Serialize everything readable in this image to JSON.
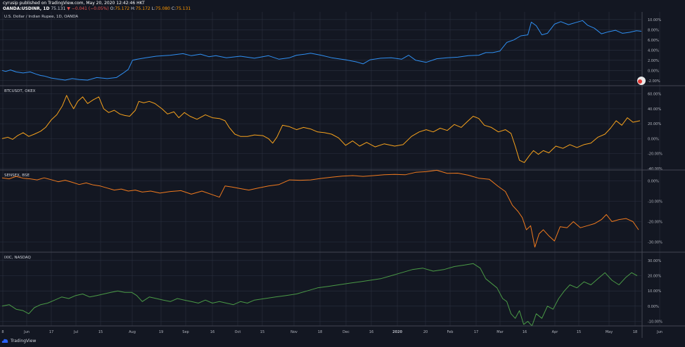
{
  "header": {
    "published": "cyrusip published on TradingView.com, May 20, 2020 12:42:46 HKT",
    "symbol": "OANDA:USDINR, 1D",
    "last": "75.131",
    "change": "▼ −0.041 (−0.05%)",
    "o_label": "O:",
    "o_value": "75.172",
    "h_label": "H:",
    "h_value": "75.172",
    "l_label": "L:",
    "l_value": "75.080",
    "c_label": "C:",
    "c_value": "75.131"
  },
  "footer": {
    "brand": "TradingView"
  },
  "colors": {
    "background": "#131722",
    "grid": "#2a3140",
    "pane_border": "#434651",
    "usdinr": "#2f8ff2",
    "btcusdt": "#f7a21c",
    "sensex": "#f07a1e",
    "ixic": "#4a9a46"
  },
  "chart_data": [
    {
      "type": "line",
      "title": "U.S. Dollar / Indian Rupee, 1D, OANDA",
      "color": "#2f8ff2",
      "y_unit": "%",
      "ylim": [
        -3.0,
        11.5
      ],
      "y_ticks": [
        "10.00%",
        "8.00%",
        "6.00%",
        "4.00%",
        "2.00%",
        "0.00%",
        "-2.00%"
      ],
      "y_tick_values": [
        10,
        8,
        6,
        4,
        2,
        0,
        -2
      ],
      "x": [
        0,
        5,
        12,
        20,
        30,
        40,
        48,
        55,
        60,
        70,
        80,
        90,
        100,
        110,
        122,
        135,
        150,
        163,
        172,
        180,
        186,
        193,
        205,
        220,
        240,
        258,
        270,
        283,
        295,
        305,
        320,
        340,
        360,
        380,
        395,
        410,
        420,
        432,
        440,
        455,
        470,
        490,
        505,
        515,
        525,
        540,
        555,
        570,
        580,
        590,
        605,
        620,
        635,
        650,
        665,
        680,
        690,
        700,
        710,
        720,
        730,
        740,
        750,
        755,
        762,
        770,
        778,
        788,
        797,
        808,
        818,
        828,
        835,
        845,
        855,
        865,
        875,
        885,
        895,
        905,
        912
      ],
      "values": [
        0.0,
        -0.2,
        0.1,
        -0.3,
        -0.5,
        -0.3,
        -0.7,
        -1.0,
        -1.1,
        -1.5,
        -1.7,
        -1.9,
        -1.6,
        -1.8,
        -1.9,
        -1.4,
        -1.6,
        -1.4,
        -0.6,
        0.2,
        2.0,
        2.2,
        2.5,
        2.8,
        3.0,
        3.3,
        2.9,
        3.2,
        2.7,
        2.9,
        2.5,
        2.8,
        2.4,
        2.9,
        2.2,
        2.5,
        3.0,
        3.2,
        3.4,
        3.0,
        2.5,
        2.1,
        1.7,
        1.3,
        2.1,
        2.4,
        2.5,
        2.2,
        3.0,
        2.0,
        1.6,
        2.3,
        2.5,
        2.6,
        2.9,
        3.0,
        3.5,
        3.5,
        3.8,
        5.5,
        6.0,
        6.8,
        7.0,
        9.5,
        8.8,
        7.0,
        7.3,
        9.1,
        9.6,
        9.0,
        9.4,
        9.8,
        8.9,
        8.3,
        7.2,
        7.6,
        7.9,
        7.3,
        7.5,
        7.8,
        7.7
      ]
    },
    {
      "type": "line",
      "title": "BTCUSDT, OKEX",
      "color": "#f7a21c",
      "y_unit": "%",
      "ylim": [
        -42,
        70
      ],
      "y_ticks": [
        "60.00%",
        "40.00%",
        "20.00%",
        "0.00%",
        "-20.00%",
        "-40.00%"
      ],
      "y_tick_values": [
        60,
        40,
        20,
        0,
        -20,
        -40
      ],
      "x": [
        0,
        8,
        15,
        22,
        30,
        38,
        46,
        55,
        62,
        70,
        78,
        86,
        92,
        97,
        102,
        108,
        115,
        122,
        130,
        138,
        145,
        152,
        160,
        168,
        175,
        182,
        190,
        195,
        202,
        210,
        218,
        228,
        236,
        245,
        252,
        260,
        268,
        278,
        290,
        300,
        310,
        318,
        324,
        332,
        340,
        350,
        360,
        372,
        380,
        386,
        392,
        400,
        410,
        420,
        430,
        440,
        450,
        460,
        470,
        480,
        490,
        500,
        510,
        520,
        532,
        545,
        560,
        572,
        584,
        595,
        605,
        615,
        625,
        635,
        645,
        655,
        665,
        672,
        680,
        688,
        698,
        708,
        718,
        726,
        732,
        738,
        745,
        752,
        758,
        765,
        772,
        780,
        790,
        800,
        810,
        820,
        830,
        840,
        850,
        860,
        868,
        876,
        884,
        892,
        900,
        910
      ],
      "values": [
        0,
        2,
        -1,
        4,
        8,
        3,
        6,
        10,
        15,
        25,
        32,
        44,
        58,
        48,
        40,
        50,
        56,
        47,
        52,
        56,
        40,
        35,
        38,
        33,
        31,
        30,
        38,
        50,
        48,
        50,
        47,
        40,
        33,
        36,
        28,
        35,
        30,
        26,
        32,
        28,
        27,
        24,
        15,
        6,
        3,
        3,
        5,
        4,
        0,
        -6,
        2,
        18,
        16,
        12,
        15,
        13,
        9,
        8,
        6,
        1,
        -9,
        -3,
        -10,
        -5,
        -11,
        -7,
        -10,
        -8,
        3,
        9,
        12,
        9,
        14,
        11,
        19,
        15,
        24,
        30,
        27,
        18,
        15,
        9,
        12,
        7,
        -10,
        -29,
        -32,
        -23,
        -16,
        -21,
        -16,
        -19,
        -10,
        -13,
        -8,
        -12,
        -8,
        -6,
        2,
        6,
        14,
        24,
        18,
        28,
        22,
        24
      ]
    },
    {
      "type": "line",
      "title": "SENSEX, BSE",
      "color": "#f07a1e",
      "y_unit": "%",
      "ylim": [
        -35,
        5
      ],
      "y_ticks": [
        "0.00%",
        "-10.00%",
        "-20.00%",
        "-30.00%"
      ],
      "y_tick_values": [
        0,
        -10,
        -20,
        -30
      ],
      "x": [
        0,
        10,
        20,
        30,
        40,
        50,
        60,
        70,
        80,
        90,
        100,
        110,
        120,
        130,
        140,
        150,
        160,
        170,
        180,
        190,
        200,
        212,
        225,
        240,
        255,
        270,
        285,
        300,
        310,
        318,
        328,
        340,
        352,
        365,
        380,
        395,
        410,
        425,
        440,
        455,
        470,
        485,
        500,
        515,
        530,
        545,
        560,
        575,
        590,
        605,
        620,
        635,
        650,
        665,
        680,
        695,
        708,
        718,
        728,
        736,
        742,
        748,
        754,
        760,
        766,
        772,
        780,
        788,
        796,
        806,
        815,
        825,
        835,
        845,
        855,
        862,
        870,
        880,
        890,
        900,
        908
      ],
      "values": [
        1.5,
        1.0,
        2.2,
        1.3,
        1.0,
        0.5,
        1.5,
        0.6,
        -0.4,
        0.3,
        -0.7,
        -1.8,
        -1.0,
        -2.0,
        -2.5,
        -3.5,
        -4.5,
        -4.0,
        -5.0,
        -4.5,
        -5.5,
        -5.0,
        -6.0,
        -5.2,
        -4.8,
        -6.5,
        -5.0,
        -6.8,
        -8.0,
        -2.5,
        -3.0,
        -3.8,
        -4.5,
        -3.5,
        -2.5,
        -1.8,
        0.5,
        0.3,
        0.5,
        1.2,
        1.8,
        2.3,
        2.6,
        2.2,
        2.6,
        3.0,
        3.2,
        3.0,
        4.2,
        4.5,
        5.2,
        3.7,
        3.8,
        2.8,
        1.3,
        0.8,
        -2.8,
        -5.2,
        -12.0,
        -15.0,
        -18.0,
        -24.0,
        -22.0,
        -32.5,
        -26.0,
        -24.0,
        -27.0,
        -29.5,
        -22.5,
        -23.0,
        -20.0,
        -23.0,
        -22.0,
        -21.0,
        -19.0,
        -16.5,
        -20.0,
        -19.0,
        -18.5,
        -20.0,
        -24.0
      ]
    },
    {
      "type": "line",
      "title": "IXIC, NASDAQ",
      "color": "#4a9a46",
      "y_unit": "%",
      "ylim": [
        -13,
        35
      ],
      "y_ticks": [
        "30.00%",
        "20.00%",
        "10.00%",
        "0.00%",
        "-10.00%"
      ],
      "y_tick_values": [
        30,
        20,
        10,
        0,
        -10
      ],
      "x": [
        0,
        10,
        20,
        30,
        38,
        46,
        55,
        65,
        75,
        85,
        95,
        105,
        115,
        125,
        135,
        145,
        155,
        165,
        175,
        185,
        192,
        200,
        210,
        220,
        230,
        240,
        250,
        260,
        270,
        280,
        290,
        300,
        310,
        320,
        330,
        340,
        350,
        360,
        375,
        390,
        405,
        420,
        435,
        450,
        465,
        480,
        495,
        510,
        525,
        540,
        555,
        570,
        585,
        600,
        615,
        630,
        645,
        660,
        672,
        682,
        690,
        698,
        706,
        714,
        720,
        726,
        732,
        738,
        744,
        750,
        756,
        762,
        770,
        778,
        786,
        794,
        802,
        810,
        820,
        830,
        840,
        850,
        860,
        870,
        880,
        890,
        898,
        906
      ],
      "values": [
        0,
        1,
        -2,
        -3,
        -5,
        -1,
        1,
        2,
        4,
        6,
        5,
        7,
        8,
        6,
        7,
        8,
        9,
        10,
        9,
        9,
        7,
        3,
        6,
        5,
        4,
        3,
        5,
        4,
        3,
        2,
        4,
        2,
        3,
        2,
        1,
        3,
        2,
        4,
        5,
        6,
        7,
        8,
        10,
        12,
        13,
        14,
        15,
        16,
        17,
        18,
        20,
        22,
        24,
        25,
        23,
        24,
        26,
        27,
        28,
        25,
        18,
        15,
        12,
        5,
        3,
        -5,
        -8,
        -3,
        -12,
        -10,
        -13,
        -5,
        -8,
        0,
        -2,
        5,
        10,
        14,
        12,
        16,
        14,
        18,
        22,
        17,
        14,
        19,
        22,
        20
      ]
    }
  ],
  "x_axis": {
    "labels": [
      "8",
      "Jun",
      "17",
      "Jul",
      "15",
      "Aug",
      "19",
      "Sep",
      "16",
      "Oct",
      "15",
      "Nov",
      "18",
      "Dec",
      "16",
      "2020",
      "20",
      "Feb",
      "17",
      "Mar",
      "16",
      "Apr",
      "15",
      "May",
      "18",
      "Jun"
    ],
    "bold": [
      "2020"
    ]
  },
  "badge_icon": "tradingview-badge-icon"
}
